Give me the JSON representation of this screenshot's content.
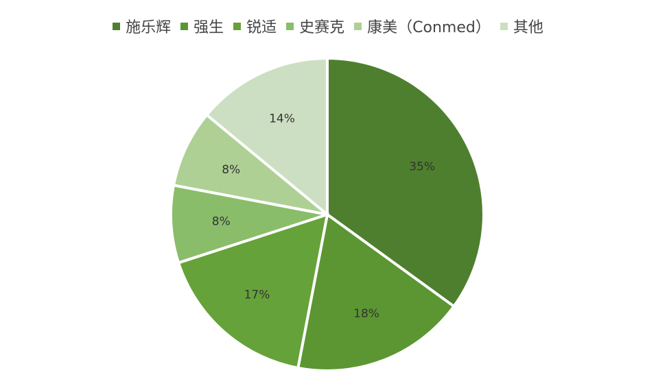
{
  "chart_data": {
    "type": "pie",
    "categories": [
      "施乐辉",
      "强生",
      "锐适",
      "史赛克",
      "康美（Conmed）",
      "其他"
    ],
    "values": [
      35,
      18,
      17,
      8,
      8,
      14
    ],
    "labels": [
      "35%",
      "18%",
      "17%",
      "8%",
      "8%",
      "14%"
    ],
    "colors": [
      "#4e7f2e",
      "#5b9633",
      "#66a23a",
      "#8abd6a",
      "#aed095",
      "#cddfc2"
    ],
    "legend_position": "top",
    "start_angle": "top, clockwise"
  }
}
